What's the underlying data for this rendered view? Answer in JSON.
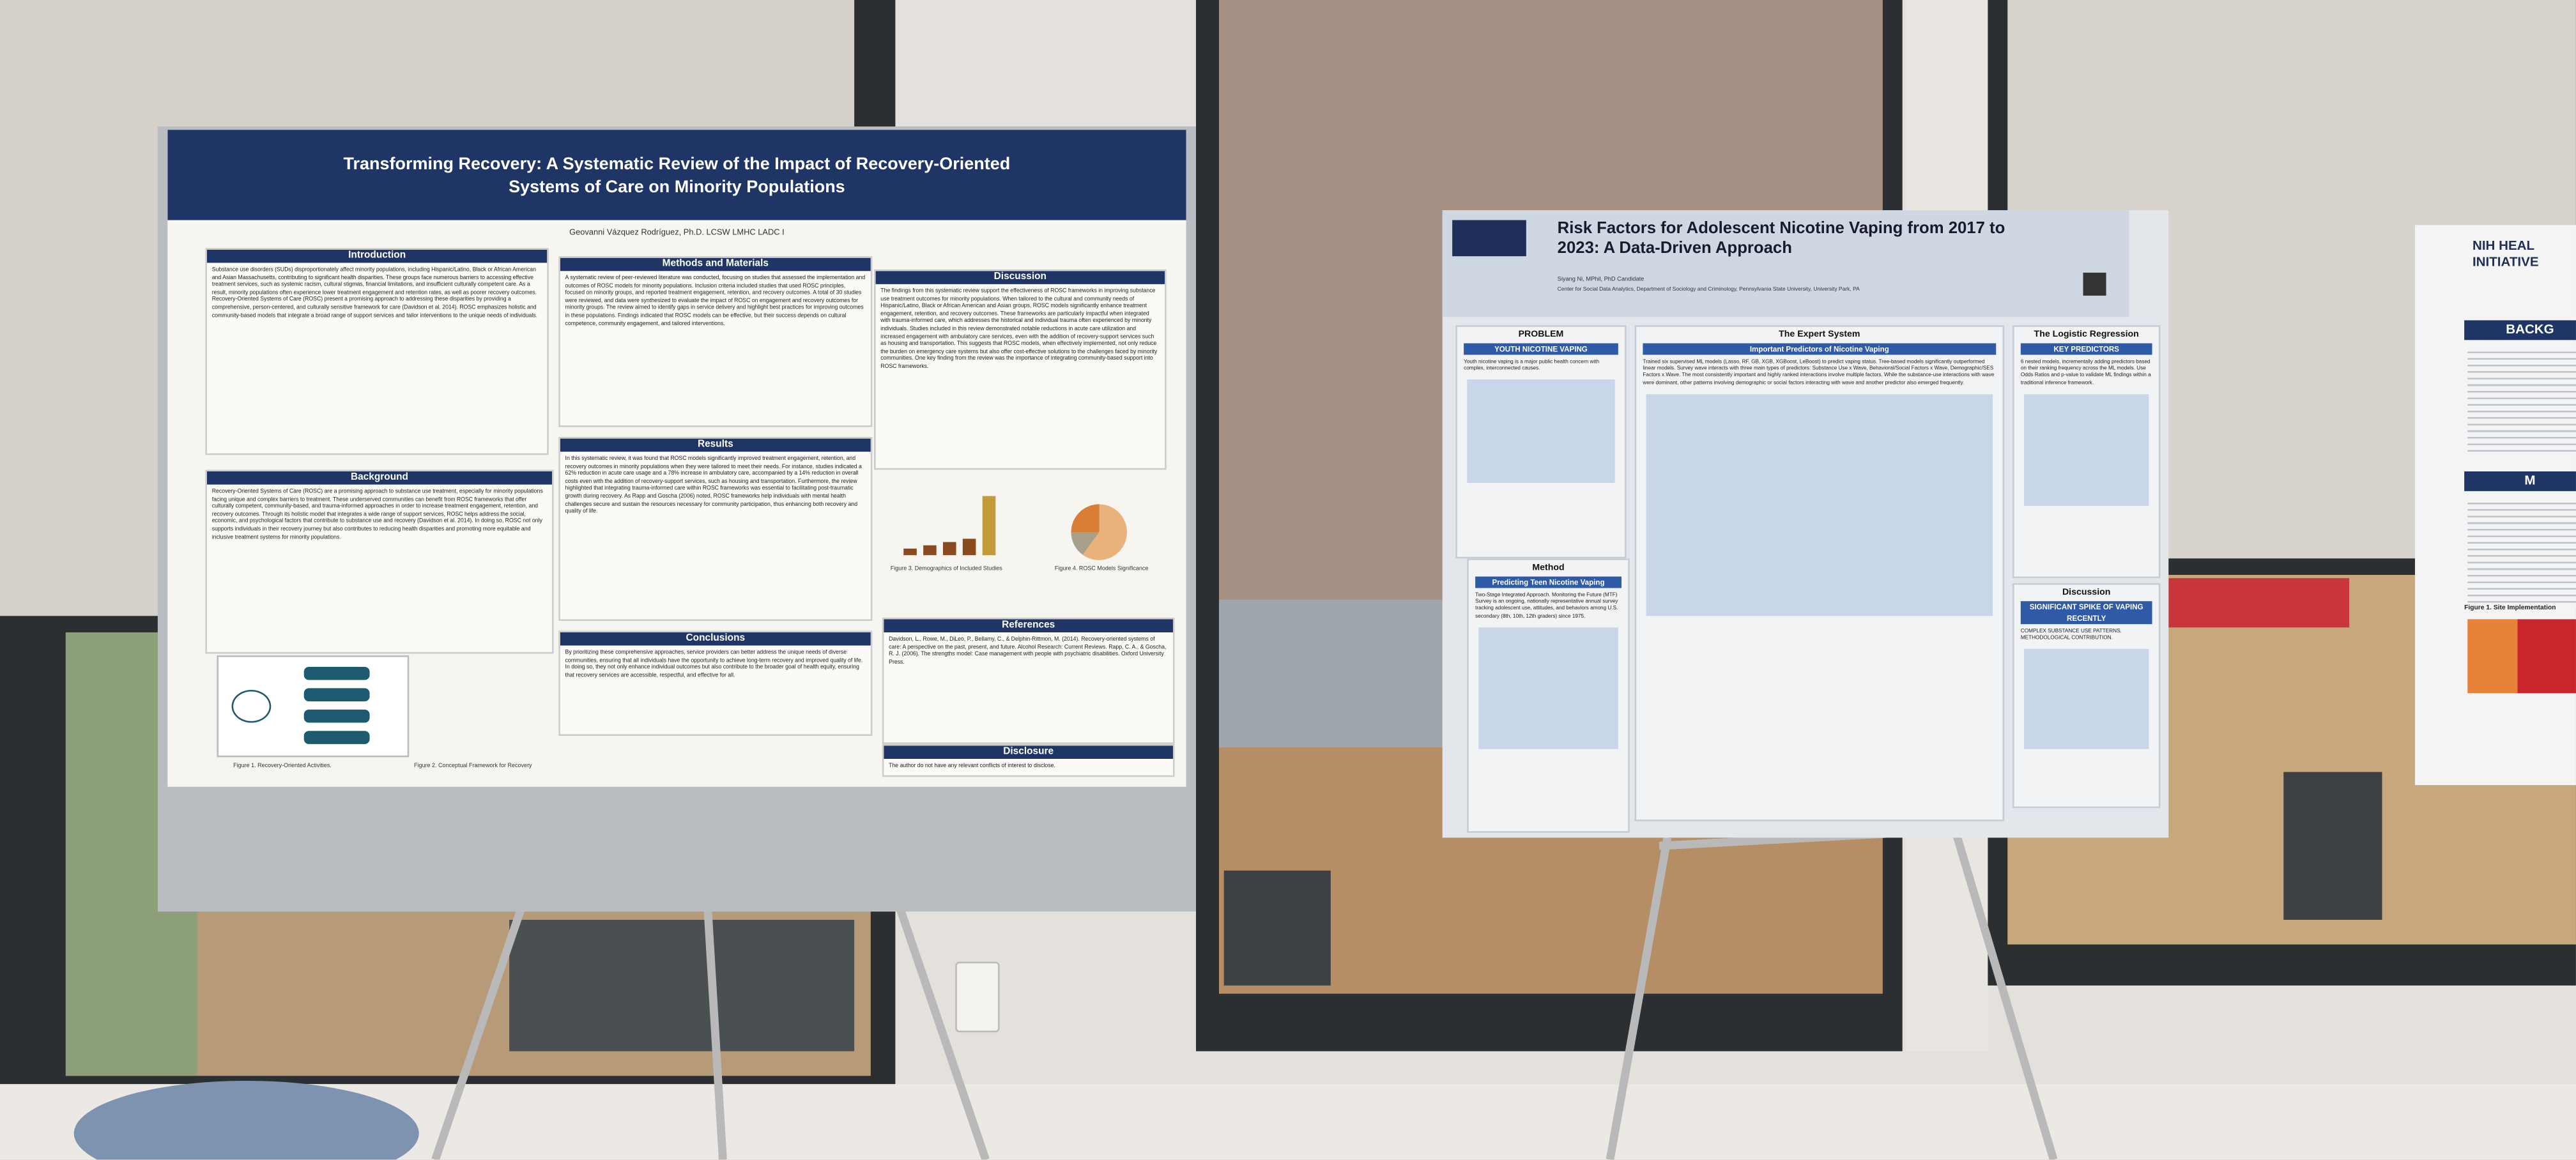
{
  "poster_left": {
    "title": "Transforming Recovery: A Systematic Review of the Impact of Recovery-Oriented Systems of Care on Minority Populations",
    "author": "Geovanni Vázquez Rodríguez, Ph.D. LCSW LMHC LADC I",
    "sections": [
      {
        "heading": "Introduction",
        "text": "Substance use disorders (SUDs) disproportionately affect minority populations, including Hispanic/Latino, Black or African American and Asian Massachusetts, contributing to significant health disparities. These groups face numerous barriers to accessing effective treatment services, such as systemic racism, cultural stigmas, financial limitations, and insufficient culturally competent care. As a result, minority populations often experience lower treatment engagement and retention rates, as well as poorer recovery outcomes. Recovery-Oriented Systems of Care (ROSC) present a promising approach to addressing these disparities by providing a comprehensive, person-centered, and culturally sensitive framework for care (Davidson et al. 2014). ROSC emphasizes holistic and community-based models that integrate a broad range of support services and tailor interventions to the unique needs of individuals."
      },
      {
        "heading": "Methods and Materials",
        "text": "A systematic review of peer-reviewed literature was conducted, focusing on studies that assessed the implementation and outcomes of ROSC models for minority populations. Inclusion criteria included studies that used ROSC principles, focused on minority groups, and reported treatment engagement, retention, and recovery outcomes. A total of 30 studies were reviewed, and data were synthesized to evaluate the impact of ROSC on engagement and recovery outcomes for minority groups. The review aimed to identify gaps in service delivery and highlight best practices for improving outcomes in these populations. Findings indicated that ROSC models can be effective, but their success depends on cultural competence, community engagement, and tailored interventions."
      },
      {
        "heading": "Discussion",
        "text": "The findings from this systematic review support the effectiveness of ROSC frameworks in improving substance use treatment outcomes for minority populations. When tailored to the cultural and community needs of Hispanic/Latino, Black or African American and Asian groups, ROSC models significantly enhance treatment engagement, retention, and recovery outcomes. These frameworks are particularly impactful when integrated with trauma-informed care, which addresses the historical and individual trauma often experienced by minority individuals. Studies included in this review demonstrated notable reductions in acute care utilization and increased engagement with ambulatory care services, even with the addition of recovery-support services such as housing and transportation. This suggests that ROSC models, when effectively implemented, not only reduce the burden on emergency care systems but also offer cost-effective solutions to the challenges faced by minority communities. One key finding from the review was the importance of integrating community-based support into ROSC frameworks."
      },
      {
        "heading": "Background",
        "text": "Recovery-Oriented Systems of Care (ROSC) are a promising approach to substance use treatment, especially for minority populations facing unique and complex barriers to treatment. These underserved communities can benefit from ROSC frameworks that offer culturally competent, community-based, and trauma-informed approaches in order to increase treatment engagement, retention, and recovery outcomes. Through its holistic model that integrates a wide range of support services, ROSC helps address the social, economic, and psychological factors that contribute to substance use and recovery (Davidson et al. 2014). In doing so, ROSC not only supports individuals in their recovery journey but also contributes to reducing health disparities and promoting more equitable and inclusive treatment systems for minority populations."
      },
      {
        "heading": "Results",
        "text": "In this systematic review, it was found that ROSC models significantly improved treatment engagement, retention, and recovery outcomes in minority populations when they were tailored to meet their needs. For instance, studies indicated a 62% reduction in acute care usage and a 78% increase in ambulatory care, accompanied by a 14% reduction in overall costs even with the addition of recovery-support services, such as housing and transportation. Furthermore, the review highlighted that integrating trauma-informed care within ROSC frameworks was essential to facilitating post-traumatic growth during recovery. As Rapp and Goscha (2006) noted, ROSC frameworks help individuals with mental health challenges secure and sustain the resources necessary for community participation, thus enhancing both recovery and quality of life."
      },
      {
        "heading": "Conclusions",
        "text": "By prioritizing these comprehensive approaches, service providers can better address the unique needs of diverse communities, ensuring that all individuals have the opportunity to achieve long-term recovery and improved quality of life. In doing so, they not only enhance individual outcomes but also contribute to the broader goal of health equity, ensuring that recovery services are accessible, respectful, and effective for all."
      },
      {
        "heading": "References",
        "text": "Davidson, L., Rowe, M., DiLeo, P., Bellamy, C., & Delphin-Rittmon, M. (2014). Recovery-oriented systems of care: A perspective on the past, present, and future. Alcohol Research: Current Reviews. Rapp, C. A., & Goscha, R. J. (2006). The strengths model: Case management with people with psychiatric disabilities. Oxford University Press."
      },
      {
        "heading": "Disclosure",
        "text": "The author do not have any relevant conflicts of interest to disclose."
      }
    ],
    "figures": [
      "Figure 1. Recovery-Oriented Activities.",
      "Figure 2. Conceptual Framework for Recovery",
      "Figure 3. Demographics of Included Studies",
      "Figure 4. ROSC Models Significance"
    ]
  },
  "poster_middle": {
    "title": "Risk Factors for Adolescent Nicotine Vaping from 2017 to 2023: A Data-Driven Approach",
    "author": "Siyang Ni, MPhil, PhD Candidate",
    "affiliation": "Center for Social Data Analytics, Department of Sociology and Criminology, Pennsylvania State University, University Park, PA",
    "sections": [
      {
        "heading": "PROBLEM",
        "subheading": "YOUTH NICOTINE VAPING",
        "text": "Youth nicotine vaping is a major public health concern with complex, interconnected causes."
      },
      {
        "heading": "Method",
        "subheading": "Predicting Teen Nicotine Vaping",
        "text": "Two-Stage Integrated Approach. Monitoring the Future (MTF) Survey is an ongoing, nationally representative annual survey tracking adolescent use, attitudes, and behaviors among U.S. secondary (8th, 10th, 12th graders) since 1975."
      },
      {
        "heading": "The Expert System",
        "subheading": "Important Predictors of Nicotine Vaping",
        "text": "Trained six supervised ML models (Lasso, RF, GB, XGB, XGBoost, LeBoost) to predict vaping status. Tree-based models significantly outperformed linear models. Survey wave interacts with three main types of predictors: Substance Use x Wave, Behavioral/Social Factors x Wave, Demographic/SES Factors x Wave. The most consistently important and highly ranked interactions involve multiple factors. While the substance-use interactions with wave were dominant, other patterns involving demographic or social factors interacting with wave and another predictor also emerged frequently."
      },
      {
        "heading": "The Logistic Regression",
        "subheading": "KEY PREDICTORS",
        "text": "6 nested models, incrementally adding predictors based on their ranking frequency across the ML models. Use Odds Ratios and p-value to validate ML findings within a traditional inference framework."
      },
      {
        "heading": "Discussion",
        "subheading": "SIGNIFICANT SPIKE OF VAPING RECENTLY",
        "text": "COMPLEX SUBSTANCE USE PATTERNS. METHODOLOGICAL CONTRIBUTION."
      }
    ]
  },
  "poster_right": {
    "logo": "NIH HEAL INITIATIVE",
    "sections": [
      "BACKG",
      "M"
    ],
    "figure": "Figure 1. Site Implementation"
  }
}
